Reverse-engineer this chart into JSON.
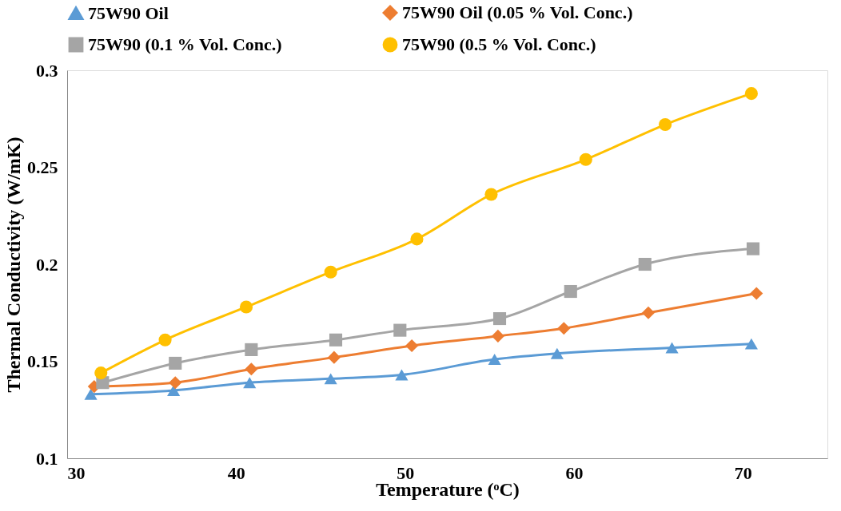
{
  "chart_data": {
    "type": "line",
    "xlabel": "Temperature (ᵒC)",
    "ylabel": "Thermal Conductivity (W/mK)",
    "xlim": [
      30,
      75
    ],
    "xticks": [
      30,
      40,
      50,
      60,
      70
    ],
    "ylim": [
      0.1,
      0.3
    ],
    "yticks": [
      0.1,
      0.15,
      0.2,
      0.25,
      0.3
    ],
    "grid": false,
    "legend": "top",
    "line_style": "solid",
    "series": [
      {
        "name": "75W90 Oil",
        "color": "#5b9bd5",
        "marker": "triangle",
        "x": [
          31.4,
          36.3,
          40.8,
          45.6,
          49.8,
          55.3,
          59.0,
          65.8,
          70.5
        ],
        "values": [
          0.133,
          0.135,
          0.139,
          0.141,
          0.143,
          0.151,
          0.154,
          0.157,
          0.159
        ]
      },
      {
        "name": "75W90 Oil (0.05 % Vol. Conc.)",
        "color": "#ed7d31",
        "marker": "diamond",
        "x": [
          31.6,
          36.4,
          40.9,
          45.8,
          50.4,
          55.5,
          59.4,
          64.4,
          70.8
        ],
        "values": [
          0.137,
          0.139,
          0.146,
          0.152,
          0.158,
          0.163,
          0.167,
          0.175,
          0.185
        ]
      },
      {
        "name": "75W90 (0.1 % Vol. Conc.)",
        "color": "#a5a5a5",
        "marker": "square",
        "x": [
          32.1,
          36.4,
          40.9,
          45.9,
          49.7,
          55.6,
          59.8,
          64.2,
          70.6
        ],
        "values": [
          0.139,
          0.149,
          0.156,
          0.161,
          0.166,
          0.172,
          0.186,
          0.2,
          0.208
        ]
      },
      {
        "name": "75W90 (0.5 % Vol. Conc.)",
        "color": "#ffc000",
        "marker": "circle",
        "x": [
          32.0,
          35.8,
          40.6,
          45.6,
          50.7,
          55.1,
          60.7,
          65.4,
          70.5
        ],
        "values": [
          0.144,
          0.161,
          0.178,
          0.196,
          0.213,
          0.236,
          0.254,
          0.272,
          0.288
        ]
      }
    ]
  }
}
